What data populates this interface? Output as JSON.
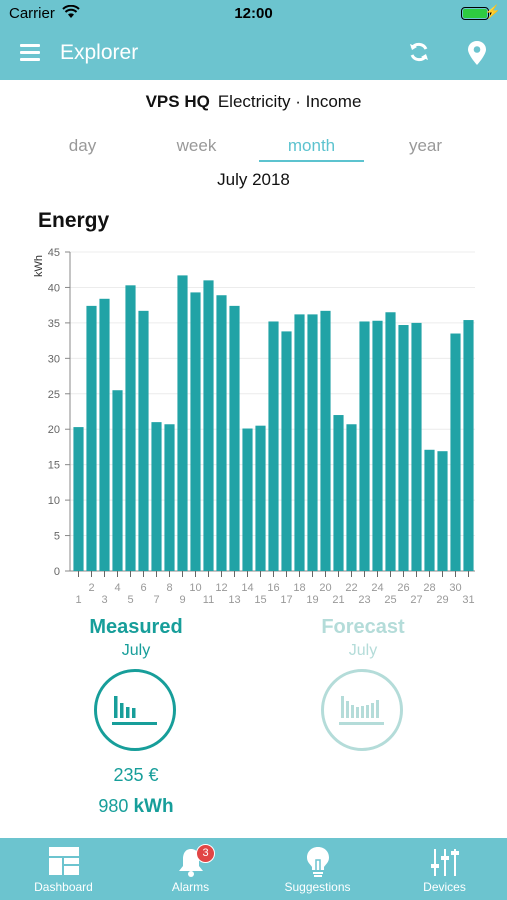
{
  "status_bar": {
    "carrier": "Carrier",
    "time": "12:00"
  },
  "nav": {
    "title": "Explorer",
    "icons": [
      "menu-icon",
      "refresh-icon",
      "location-pin-icon"
    ]
  },
  "site": {
    "name": "VPS HQ",
    "detail": "Electricity · Income"
  },
  "period_tabs": [
    {
      "label": "day",
      "active": false
    },
    {
      "label": "week",
      "active": false
    },
    {
      "label": "month",
      "active": true
    },
    {
      "label": "year",
      "active": false
    }
  ],
  "period_label": "July 2018",
  "chart_title": "Energy",
  "chart_data": {
    "type": "bar",
    "title": "Energy",
    "ylabel": "kWh",
    "xlabel": "",
    "ylim": [
      0,
      45
    ],
    "yticks": [
      0,
      5,
      10,
      15,
      20,
      25,
      30,
      35,
      40,
      45
    ],
    "grid": true,
    "color": "#21a3a6",
    "categories": [
      "1",
      "2",
      "3",
      "4",
      "5",
      "6",
      "7",
      "8",
      "9",
      "10",
      "11",
      "12",
      "13",
      "14",
      "15",
      "16",
      "17",
      "18",
      "19",
      "20",
      "21",
      "22",
      "23",
      "24",
      "25",
      "26",
      "27",
      "28",
      "29",
      "30",
      "31"
    ],
    "values": [
      20.3,
      37.4,
      38.4,
      25.5,
      40.3,
      36.7,
      21.0,
      20.7,
      41.7,
      39.3,
      41.0,
      38.9,
      37.4,
      20.1,
      20.5,
      35.2,
      33.8,
      36.2,
      36.2,
      36.7,
      22.0,
      20.7,
      35.2,
      35.3,
      36.5,
      34.7,
      35.0,
      17.1,
      16.9,
      33.5,
      35.4
    ]
  },
  "measured": {
    "heading": "Measured",
    "period": "July",
    "cost_value": "235",
    "cost_unit": "€",
    "energy_value": "980",
    "energy_unit": "kWh"
  },
  "forecast": {
    "heading": "Forecast",
    "period": "July"
  },
  "bottom_tabs": [
    {
      "label": "Dashboard",
      "icon": "dashboard-icon"
    },
    {
      "label": "Alarms",
      "icon": "bell-icon",
      "badge": "3"
    },
    {
      "label": "Suggestions",
      "icon": "lightbulb-icon"
    },
    {
      "label": "Devices",
      "icon": "sliders-icon"
    }
  ],
  "colors": {
    "accent": "#6cc4cf",
    "teal": "#179e9a",
    "forecast": "#b4dcd9",
    "bar": "#21a3a6"
  }
}
